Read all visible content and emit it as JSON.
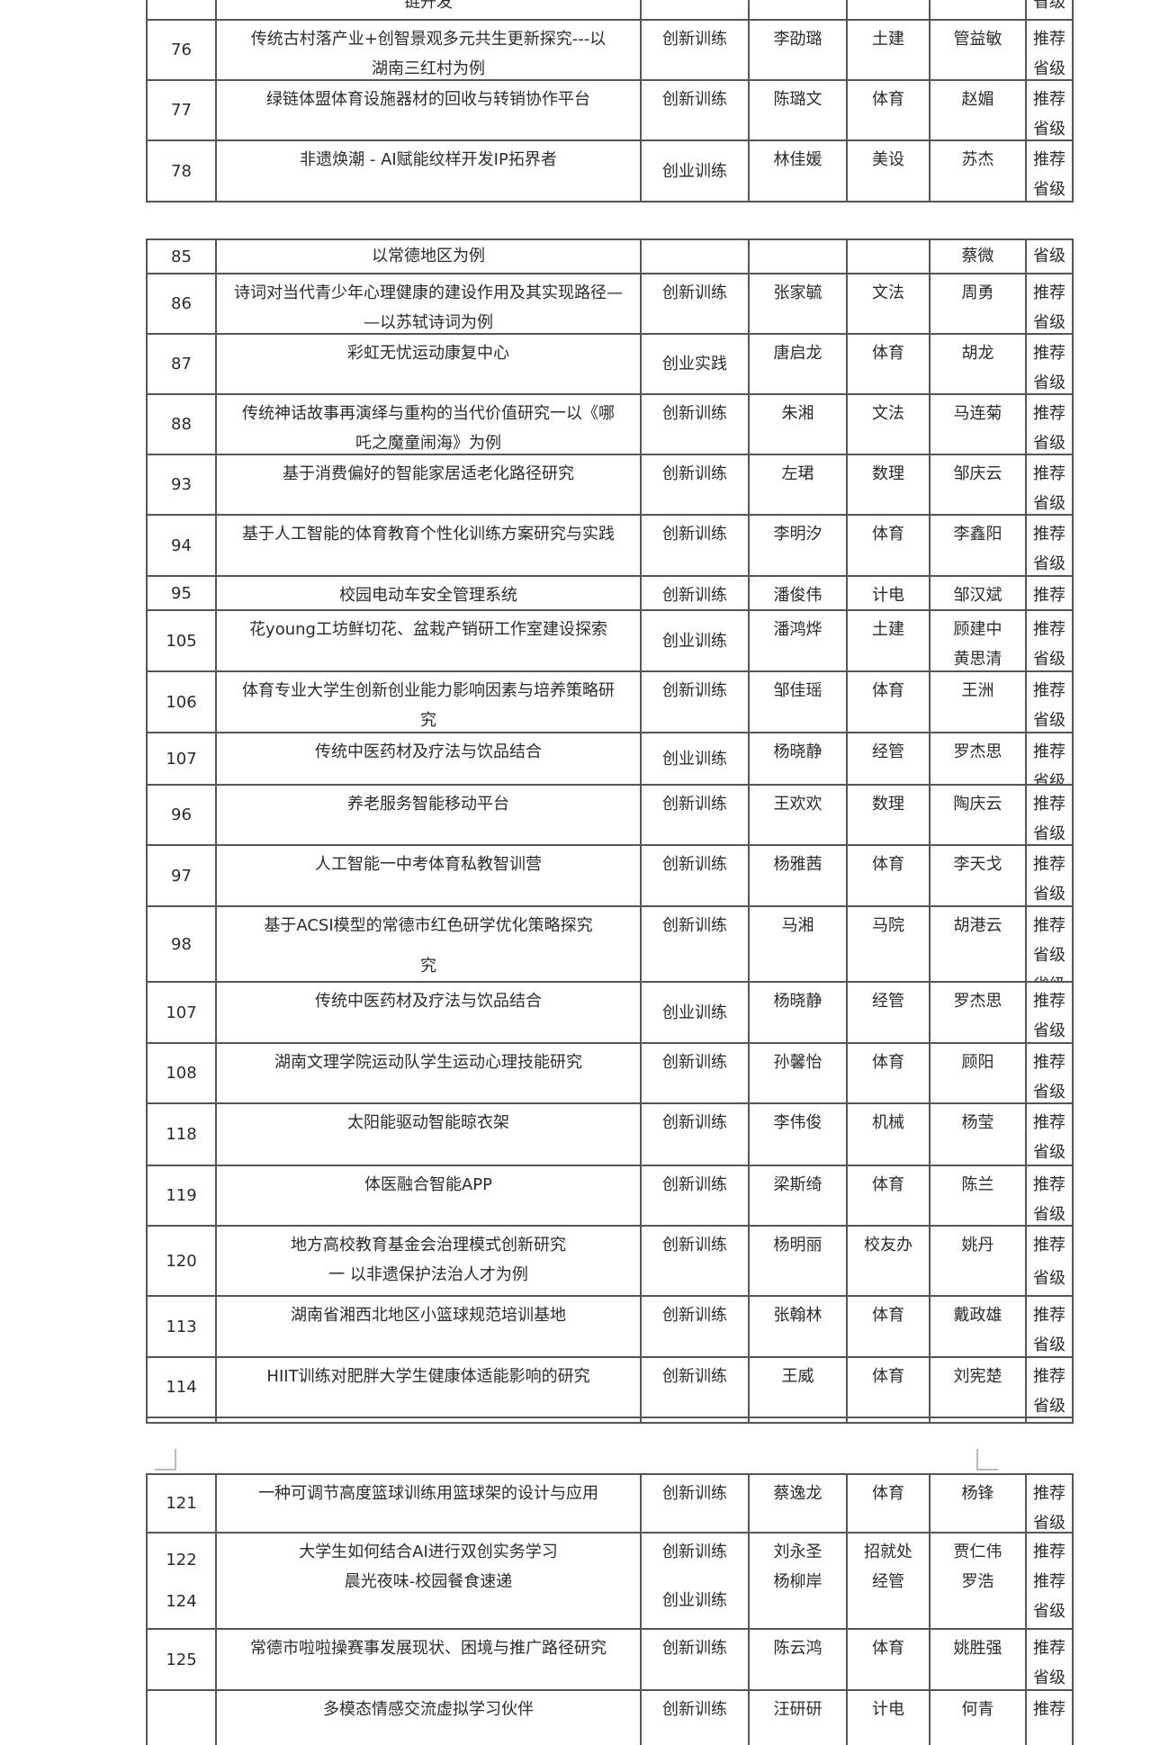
{
  "sections": [
    {
      "rows": [
        {
          "no": [
            ""
          ],
          "title": [
            "链开发"
          ],
          "type": [
            ""
          ],
          "leader": [
            ""
          ],
          "dept": [
            ""
          ],
          "advisor": [
            ""
          ],
          "level": [
            "省级"
          ]
        },
        {
          "no": [
            "76"
          ],
          "title": [
            "传统古村落产业+创智景观多元共生更新探究---以",
            "湖南三红村为例"
          ],
          "type": [
            "创新训练"
          ],
          "leader": [
            "李劭璐"
          ],
          "dept": [
            "土建"
          ],
          "advisor": [
            "管益敏"
          ],
          "level": [
            "推荐",
            "省级"
          ]
        },
        {
          "no": [
            "77"
          ],
          "title": [
            "绿链体盟体育设施器材的回收与转销协作平台"
          ],
          "type": [
            "创新训练"
          ],
          "leader": [
            "陈璐文"
          ],
          "dept": [
            "体育"
          ],
          "advisor": [
            "赵媚"
          ],
          "level": [
            "推荐",
            "省级"
          ]
        },
        {
          "no": [
            "78"
          ],
          "title": [
            "非遗焕潮 - AI赋能纹样开发IP拓界者"
          ],
          "type": [
            "创业训练"
          ],
          "leader": [
            "林佳媛"
          ],
          "dept": [
            "美设"
          ],
          "advisor": [
            "苏杰"
          ],
          "level": [
            "推荐",
            "省级"
          ]
        }
      ]
    },
    {
      "rows": [
        {
          "no": [
            "85"
          ],
          "title": [
            "以常德地区为例"
          ],
          "type": [
            ""
          ],
          "leader": [
            ""
          ],
          "dept": [
            ""
          ],
          "advisor": [
            "蔡微"
          ],
          "level": [
            "省级"
          ]
        },
        {
          "no": [
            "86"
          ],
          "title": [
            "诗词对当代青少年心理健康的建设作用及其实现路径—",
            "—以苏轼诗词为例"
          ],
          "type": [
            "创新训练"
          ],
          "leader": [
            "张家毓"
          ],
          "dept": [
            "文法"
          ],
          "advisor": [
            "周勇"
          ],
          "level": [
            "推荐",
            "省级"
          ]
        },
        {
          "no": [
            "87"
          ],
          "title": [
            "彩虹无忧运动康复中心"
          ],
          "type": [
            "创业实践"
          ],
          "leader": [
            "唐启龙"
          ],
          "dept": [
            "体育"
          ],
          "advisor": [
            "胡龙"
          ],
          "level": [
            "推荐",
            "省级"
          ]
        },
        {
          "no": [
            "88"
          ],
          "title": [
            "传统神话故事再演绎与重构的当代价值研究一以《哪",
            "吒之魔童闹海》为例"
          ],
          "type": [
            "创新训练"
          ],
          "leader": [
            "朱湘"
          ],
          "dept": [
            "文法"
          ],
          "advisor": [
            "马连菊"
          ],
          "level": [
            "推荐",
            "省级"
          ]
        },
        {
          "no": [
            "93"
          ],
          "title": [
            "基于消费偏好的智能家居适老化路径研究"
          ],
          "type": [
            "创新训练"
          ],
          "leader": [
            "左珺"
          ],
          "dept": [
            "数理"
          ],
          "advisor": [
            "邹庆云"
          ],
          "level": [
            "推荐",
            "省级"
          ]
        },
        {
          "no": [
            "94"
          ],
          "title": [
            "基于人工智能的体育教育个性化训练方案研究与实践"
          ],
          "type": [
            "创新训练"
          ],
          "leader": [
            "李明汐"
          ],
          "dept": [
            "体育"
          ],
          "advisor": [
            "李鑫阳"
          ],
          "level": [
            "推荐",
            "省级"
          ]
        },
        {
          "no": [
            "95"
          ],
          "title": [
            "校园电动车安全管理系统"
          ],
          "type": [
            "创新训练"
          ],
          "leader": [
            "潘俊伟"
          ],
          "dept": [
            "计电"
          ],
          "advisor": [
            "邹汉斌"
          ],
          "level": [
            "推荐"
          ]
        },
        {
          "no": [
            "105"
          ],
          "title": [
            "花young工坊鲜切花、盆栽产销研工作室建设探索"
          ],
          "type": [
            "创业训练"
          ],
          "leader": [
            "潘鸿烨"
          ],
          "dept": [
            "土建"
          ],
          "advisor": [
            "顾建中",
            "黄思清"
          ],
          "level": [
            "推荐",
            "省级"
          ]
        },
        {
          "no": [
            "106"
          ],
          "title": [
            "体育专业大学生创新创业能力影响因素与培养策略研",
            "究"
          ],
          "type": [
            "创新训练"
          ],
          "leader": [
            "邹佳瑶"
          ],
          "dept": [
            "体育"
          ],
          "advisor": [
            "王洲"
          ],
          "level": [
            "推荐",
            "省级"
          ]
        },
        {
          "no": [
            "107"
          ],
          "title": [
            "传统中医药材及疗法与饮品结合"
          ],
          "type": [
            "创业训练"
          ],
          "leader": [
            "杨晓静"
          ],
          "dept": [
            "经管"
          ],
          "advisor": [
            "罗杰思"
          ],
          "level": [
            "推荐",
            "省级"
          ]
        },
        {
          "no": [
            "96"
          ],
          "title": [
            "养老服务智能移动平台"
          ],
          "type": [
            "创新训练"
          ],
          "leader": [
            "王欢欢"
          ],
          "dept": [
            "数理"
          ],
          "advisor": [
            "陶庆云"
          ],
          "level": [
            "推荐",
            "省级"
          ]
        },
        {
          "no": [
            "97"
          ],
          "title": [
            "人工智能一中考体育私教智训营"
          ],
          "type": [
            "创新训练"
          ],
          "leader": [
            "杨雅茜"
          ],
          "dept": [
            "体育"
          ],
          "advisor": [
            "李天戈"
          ],
          "level": [
            "推荐",
            "省级"
          ]
        },
        {
          "no": [
            "98"
          ],
          "title": [
            "基于ACSI模型的常德市红色研学优化策略探究",
            "究"
          ],
          "type": [
            "创新训练"
          ],
          "leader": [
            "马湘"
          ],
          "dept": [
            "马院"
          ],
          "advisor": [
            "胡港云"
          ],
          "level": [
            "推荐",
            "省级",
            "省级"
          ]
        },
        {
          "no": [
            "107"
          ],
          "title": [
            "传统中医药材及疗法与饮品结合"
          ],
          "type": [
            "创业训练"
          ],
          "leader": [
            "杨晓静"
          ],
          "dept": [
            "经管"
          ],
          "advisor": [
            "罗杰思"
          ],
          "level": [
            "推荐",
            "省级"
          ]
        },
        {
          "no": [
            "108"
          ],
          "title": [
            "湖南文理学院运动队学生运动心理技能研究"
          ],
          "type": [
            "创新训练"
          ],
          "leader": [
            "孙馨怡"
          ],
          "dept": [
            "体育"
          ],
          "advisor": [
            "顾阳"
          ],
          "level": [
            "推荐",
            "省级"
          ]
        },
        {
          "no": [
            "118"
          ],
          "title": [
            "太阳能驱动智能晾衣架"
          ],
          "type": [
            "创新训练"
          ],
          "leader": [
            "李伟俊"
          ],
          "dept": [
            "机械"
          ],
          "advisor": [
            "杨莹"
          ],
          "level": [
            "推荐",
            "省级"
          ]
        },
        {
          "no": [
            "119"
          ],
          "title": [
            "体医融合智能APP"
          ],
          "type": [
            "创新训练"
          ],
          "leader": [
            "梁斯绮"
          ],
          "dept": [
            "体育"
          ],
          "advisor": [
            "陈兰"
          ],
          "level": [
            "推荐",
            "省级"
          ]
        },
        {
          "no": [
            "120"
          ],
          "title": [
            "地方高校教育基金会治理模式创新研究",
            "一 以非遗保护法治人才为例"
          ],
          "type": [
            "创新训练"
          ],
          "leader": [
            "杨明丽"
          ],
          "dept": [
            "校友办"
          ],
          "advisor": [
            "姚丹"
          ],
          "level": [
            "推荐",
            "省级"
          ]
        },
        {
          "no": [
            "113"
          ],
          "title": [
            "湖南省湘西北地区小篮球规范培训基地"
          ],
          "type": [
            "创新训练"
          ],
          "leader": [
            "张翰林"
          ],
          "dept": [
            "体育"
          ],
          "advisor": [
            "戴政雄"
          ],
          "level": [
            "推荐",
            "省级"
          ]
        },
        {
          "no": [
            "114"
          ],
          "title": [
            "HIIT训练对肥胖大学生健康体适能影响的研究"
          ],
          "type": [
            "创新训练"
          ],
          "leader": [
            "王威"
          ],
          "dept": [
            "体育"
          ],
          "advisor": [
            "刘宪楚"
          ],
          "level": [
            "推荐",
            "省级"
          ]
        },
        {
          "no": [
            ""
          ],
          "title": [
            ""
          ],
          "type": [
            ""
          ],
          "leader": [
            ""
          ],
          "dept": [
            ""
          ],
          "advisor": [
            ""
          ],
          "level": [
            ""
          ]
        }
      ]
    },
    {
      "rows": [
        {
          "no": [
            "121"
          ],
          "title": [
            "一种可调节高度篮球训练用篮球架的设计与应用"
          ],
          "type": [
            "创新训练"
          ],
          "leader": [
            "蔡逸龙"
          ],
          "dept": [
            "体育"
          ],
          "advisor": [
            "杨锋"
          ],
          "level": [
            "推荐",
            "省级"
          ]
        },
        {
          "no": [
            "122",
            "124"
          ],
          "title": [
            "大学生如何结合AI进行双创实务学习",
            "晨光夜味-校园餐食速递"
          ],
          "type": [
            "创新训练",
            "创业训练"
          ],
          "leader": [
            "刘永圣",
            "杨柳岸"
          ],
          "dept": [
            "招就处",
            "经管"
          ],
          "advisor": [
            "贾仁伟",
            "罗浩"
          ],
          "level": [
            "推荐",
            "推荐",
            "省级"
          ]
        },
        {
          "no": [
            "125"
          ],
          "title": [
            "常德市啦啦操赛事发展现状、困境与推广路径研究"
          ],
          "type": [
            "创新训练"
          ],
          "leader": [
            "陈云鸿"
          ],
          "dept": [
            "体育"
          ],
          "advisor": [
            "姚胜强"
          ],
          "level": [
            "推荐",
            "省级"
          ]
        },
        {
          "no": [
            ""
          ],
          "title": [
            "多模态情感交流虚拟学习伙伴"
          ],
          "type": [
            "创新训练"
          ],
          "leader": [
            "汪研研"
          ],
          "dept": [
            "计电"
          ],
          "advisor": [
            "何青"
          ],
          "level": [
            "推荐"
          ]
        }
      ]
    }
  ]
}
